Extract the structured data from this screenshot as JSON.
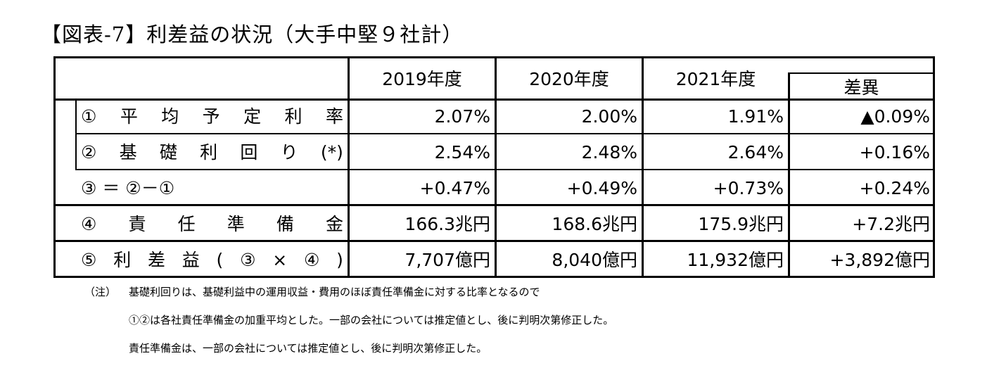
{
  "title": "【図表-7】利差益の状況（大手中堅９社計）",
  "table": {
    "headers": [
      "2019年度",
      "2020年度",
      "2021年度",
      "差異"
    ],
    "rows": [
      {
        "label_chars": [
          "①",
          "平",
          "均",
          "予",
          "定",
          "利",
          "率"
        ],
        "values": [
          "2.07%",
          "2.00%",
          "1.91%",
          "▲0.09%"
        ]
      },
      {
        "label_chars": [
          "②",
          "基",
          "礎",
          "利",
          "回",
          "り",
          "(*)"
        ],
        "values": [
          "2.54%",
          "2.48%",
          "2.64%",
          "+0.16%"
        ]
      },
      {
        "label": "③ ＝ ②－①",
        "values": [
          "+0.47%",
          "+0.49%",
          "+0.73%",
          "+0.24%"
        ]
      },
      {
        "label_chars": [
          "④",
          "責",
          "任",
          "準",
          "備",
          "金"
        ],
        "values": [
          "166.3兆円",
          "168.6兆円",
          "175.9兆円",
          "+7.2兆円"
        ]
      },
      {
        "label_chars": [
          "⑤",
          "利",
          "差",
          "益",
          "(",
          "③",
          "×",
          "④",
          ")"
        ],
        "values": [
          "7,707億円",
          "8,040億円",
          "11,932億円",
          "+3,892億円"
        ]
      }
    ]
  },
  "notes": {
    "marker": "（注）",
    "lines": [
      "基礎利回りは、基礎利益中の運用収益・費用のほぼ責任準備金に対する比率となるので",
      "①②は各社責任準備金の加重平均とした。一部の会社については推定値とし、後に判明次第修正した。",
      "責任準備金は、一部の会社については推定値とし、後に判明次第修正した。"
    ]
  }
}
